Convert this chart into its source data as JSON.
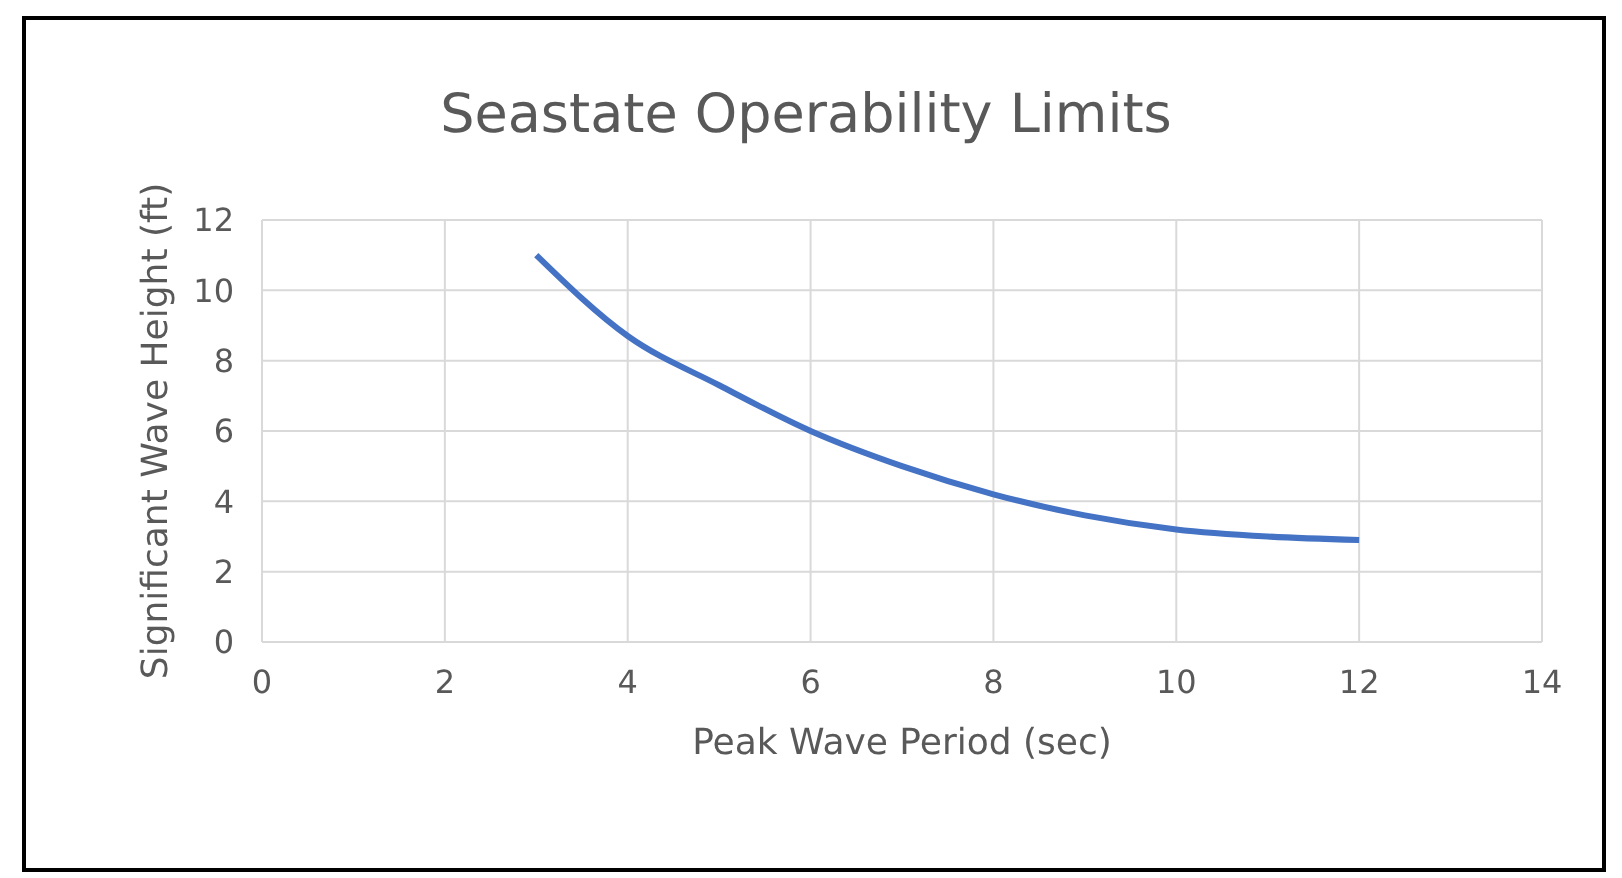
{
  "chart_data": {
    "type": "line",
    "title": "Seastate Operability Limits",
    "xlabel": "Peak Wave Period (sec)",
    "ylabel": "Significant Wave Height (ft)",
    "x": [
      3,
      4,
      5,
      6,
      7,
      8,
      9,
      10,
      11,
      12
    ],
    "series": [
      {
        "color": "#4472c4",
        "values": [
          11,
          8.7,
          7.3,
          6,
          5,
          4.2,
          3.6,
          3.2,
          3,
          2.9
        ]
      }
    ],
    "xlim": [
      0,
      14
    ],
    "xticks": [
      0,
      2,
      4,
      6,
      8,
      10,
      12,
      14
    ],
    "ylim": [
      0,
      12
    ],
    "yticks": [
      0,
      2,
      4,
      6,
      8,
      10,
      12
    ],
    "grid": true,
    "marker": "none",
    "line_style": "solid"
  }
}
